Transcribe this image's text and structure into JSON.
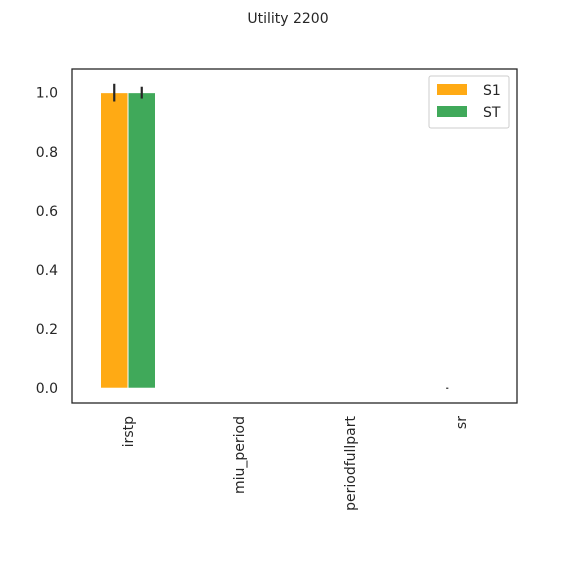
{
  "chart_data": {
    "type": "bar",
    "title": "Utility 2200",
    "xlabel": "",
    "ylabel": "",
    "categories": [
      "irstp",
      "miu_period",
      "periodfullpart",
      "sr"
    ],
    "series": [
      {
        "name": "S1",
        "color": "#FFAA14",
        "values": [
          1.0,
          0.0,
          0.0,
          0.0
        ],
        "errors": [
          0.03,
          0.0,
          0.0,
          0.002
        ]
      },
      {
        "name": "ST",
        "color": "#40A95A",
        "values": [
          1.0,
          0.0,
          0.0,
          0.0
        ],
        "errors": [
          0.02,
          0.0,
          0.0,
          0.0
        ]
      }
    ],
    "ylim": [
      -0.05,
      1.08
    ],
    "yticks": [
      "0.0",
      "0.2",
      "0.4",
      "0.6",
      "0.8",
      "1.0"
    ],
    "grid": false,
    "legend_position": "top-right",
    "x_tick_rotation": "vertical"
  }
}
